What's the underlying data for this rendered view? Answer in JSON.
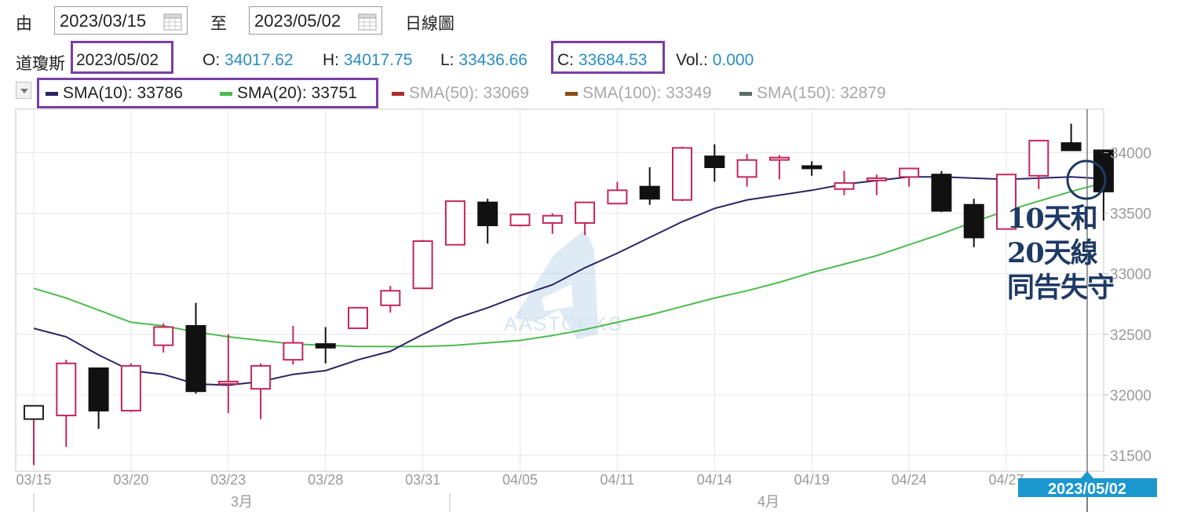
{
  "header": {
    "from_label": "由",
    "from_date": "2023/03/15",
    "to_label": "至",
    "to_date": "2023/05/02",
    "chart_period": "日線圖"
  },
  "info": {
    "index_name": "道瓊斯",
    "date": "2023/05/02",
    "open_label": "O:",
    "open": "34017.62",
    "high_label": "H:",
    "high": "34017.75",
    "low_label": "L:",
    "low": "33436.66",
    "close_label": "C:",
    "close": "33684.53",
    "vol_label": "Vol.:",
    "vol": "0.000"
  },
  "sma_legend": [
    {
      "label": "SMA(10): 33786",
      "color": "#2b2466",
      "active": true
    },
    {
      "label": "SMA(20): 33751",
      "color": "#4dbb4f",
      "active": true
    },
    {
      "label": "SMA(50): 33069",
      "color": "#b22a2a",
      "active": false
    },
    {
      "label": "SMA(100): 33349",
      "color": "#8a4b12",
      "active": false
    },
    {
      "label": "SMA(150): 32879",
      "color": "#5a6e6a",
      "active": false
    }
  ],
  "annotation": [
    "10天和",
    "20天線",
    "同告失守"
  ],
  "watermark": "AASTOCKS",
  "colors": {
    "up": "#c4275a",
    "down": "#111111",
    "sma10": "#2b2466",
    "sma20": "#4dbb4f",
    "accent": "#1a97cf"
  },
  "chart_data": {
    "type": "candlestick",
    "dates": [
      "03/15",
      "03/16",
      "03/17",
      "03/20",
      "03/21",
      "03/22",
      "03/23",
      "03/24",
      "03/27",
      "03/28",
      "03/29",
      "03/30",
      "03/31",
      "04/03",
      "04/04",
      "04/05",
      "04/06",
      "04/10",
      "04/11",
      "04/12",
      "04/13",
      "04/14",
      "04/17",
      "04/18",
      "04/19",
      "04/20",
      "04/21",
      "04/24",
      "04/25",
      "04/26",
      "04/27",
      "04/28",
      "05/01",
      "05/02"
    ],
    "ohlc": [
      [
        31800,
        31910,
        31420,
        31910
      ],
      [
        31830,
        32290,
        31570,
        32260
      ],
      [
        32220,
        32220,
        31720,
        31870
      ],
      [
        31870,
        32260,
        31860,
        32240
      ],
      [
        32410,
        32590,
        32350,
        32560
      ],
      [
        32570,
        32760,
        32010,
        32030
      ],
      [
        32100,
        32500,
        31850,
        32110
      ],
      [
        32050,
        32260,
        31800,
        32240
      ],
      [
        32290,
        32570,
        32250,
        32430
      ],
      [
        32420,
        32560,
        32260,
        32390
      ],
      [
        32550,
        32720,
        32550,
        32720
      ],
      [
        32740,
        32900,
        32680,
        32860
      ],
      [
        32880,
        33280,
        32880,
        33270
      ],
      [
        33240,
        33600,
        33240,
        33600
      ],
      [
        33590,
        33620,
        33250,
        33400
      ],
      [
        33400,
        33490,
        33390,
        33490
      ],
      [
        33420,
        33500,
        33330,
        33480
      ],
      [
        33420,
        33590,
        33320,
        33590
      ],
      [
        33580,
        33760,
        33580,
        33690
      ],
      [
        33720,
        33880,
        33570,
        33620
      ],
      [
        33610,
        34050,
        33600,
        34040
      ],
      [
        33970,
        34070,
        33760,
        33880
      ],
      [
        33800,
        33990,
        33720,
        33940
      ],
      [
        33960,
        33980,
        33780,
        33960
      ],
      [
        33890,
        33930,
        33810,
        33880
      ],
      [
        33700,
        33850,
        33650,
        33750
      ],
      [
        33780,
        33820,
        33650,
        33790
      ],
      [
        33800,
        33870,
        33720,
        33870
      ],
      [
        33820,
        33850,
        33510,
        33520
      ],
      [
        33570,
        33620,
        33220,
        33300
      ],
      [
        33370,
        33820,
        33370,
        33820
      ],
      [
        33810,
        34100,
        33700,
        34100
      ],
      [
        34080,
        34240,
        34020,
        34020
      ],
      [
        34020,
        34020,
        33440,
        33680
      ]
    ],
    "series": [
      {
        "name": "SMA(10)",
        "values": [
          32550,
          32480,
          32330,
          32200,
          32170,
          32090,
          32080,
          32110,
          32170,
          32200,
          32290,
          32360,
          32500,
          32630,
          32720,
          32820,
          32910,
          33050,
          33170,
          33300,
          33430,
          33540,
          33610,
          33650,
          33690,
          33740,
          33770,
          33800,
          33800,
          33790,
          33780,
          33790,
          33800,
          33786
        ]
      },
      {
        "name": "SMA(20)",
        "values": [
          32880,
          32800,
          32700,
          32600,
          32570,
          32520,
          32480,
          32450,
          32420,
          32410,
          32400,
          32400,
          32400,
          32410,
          32430,
          32450,
          32490,
          32540,
          32600,
          32660,
          32730,
          32800,
          32860,
          32930,
          33010,
          33080,
          33150,
          33240,
          33330,
          33430,
          33520,
          33600,
          33680,
          33751
        ]
      }
    ],
    "y_ticks": [
      31500,
      32000,
      32500,
      33000,
      33500,
      34000
    ],
    "ylim": [
      31370,
      34360
    ],
    "x_tick_labels": [
      "03/15",
      "03/20",
      "03/23",
      "03/28",
      "03/31",
      "04/05",
      "04/11",
      "04/14",
      "04/19",
      "04/24",
      "04/27"
    ],
    "month_labels": [
      "3月",
      "4月"
    ],
    "crosshair_label": "2023/05/02"
  }
}
